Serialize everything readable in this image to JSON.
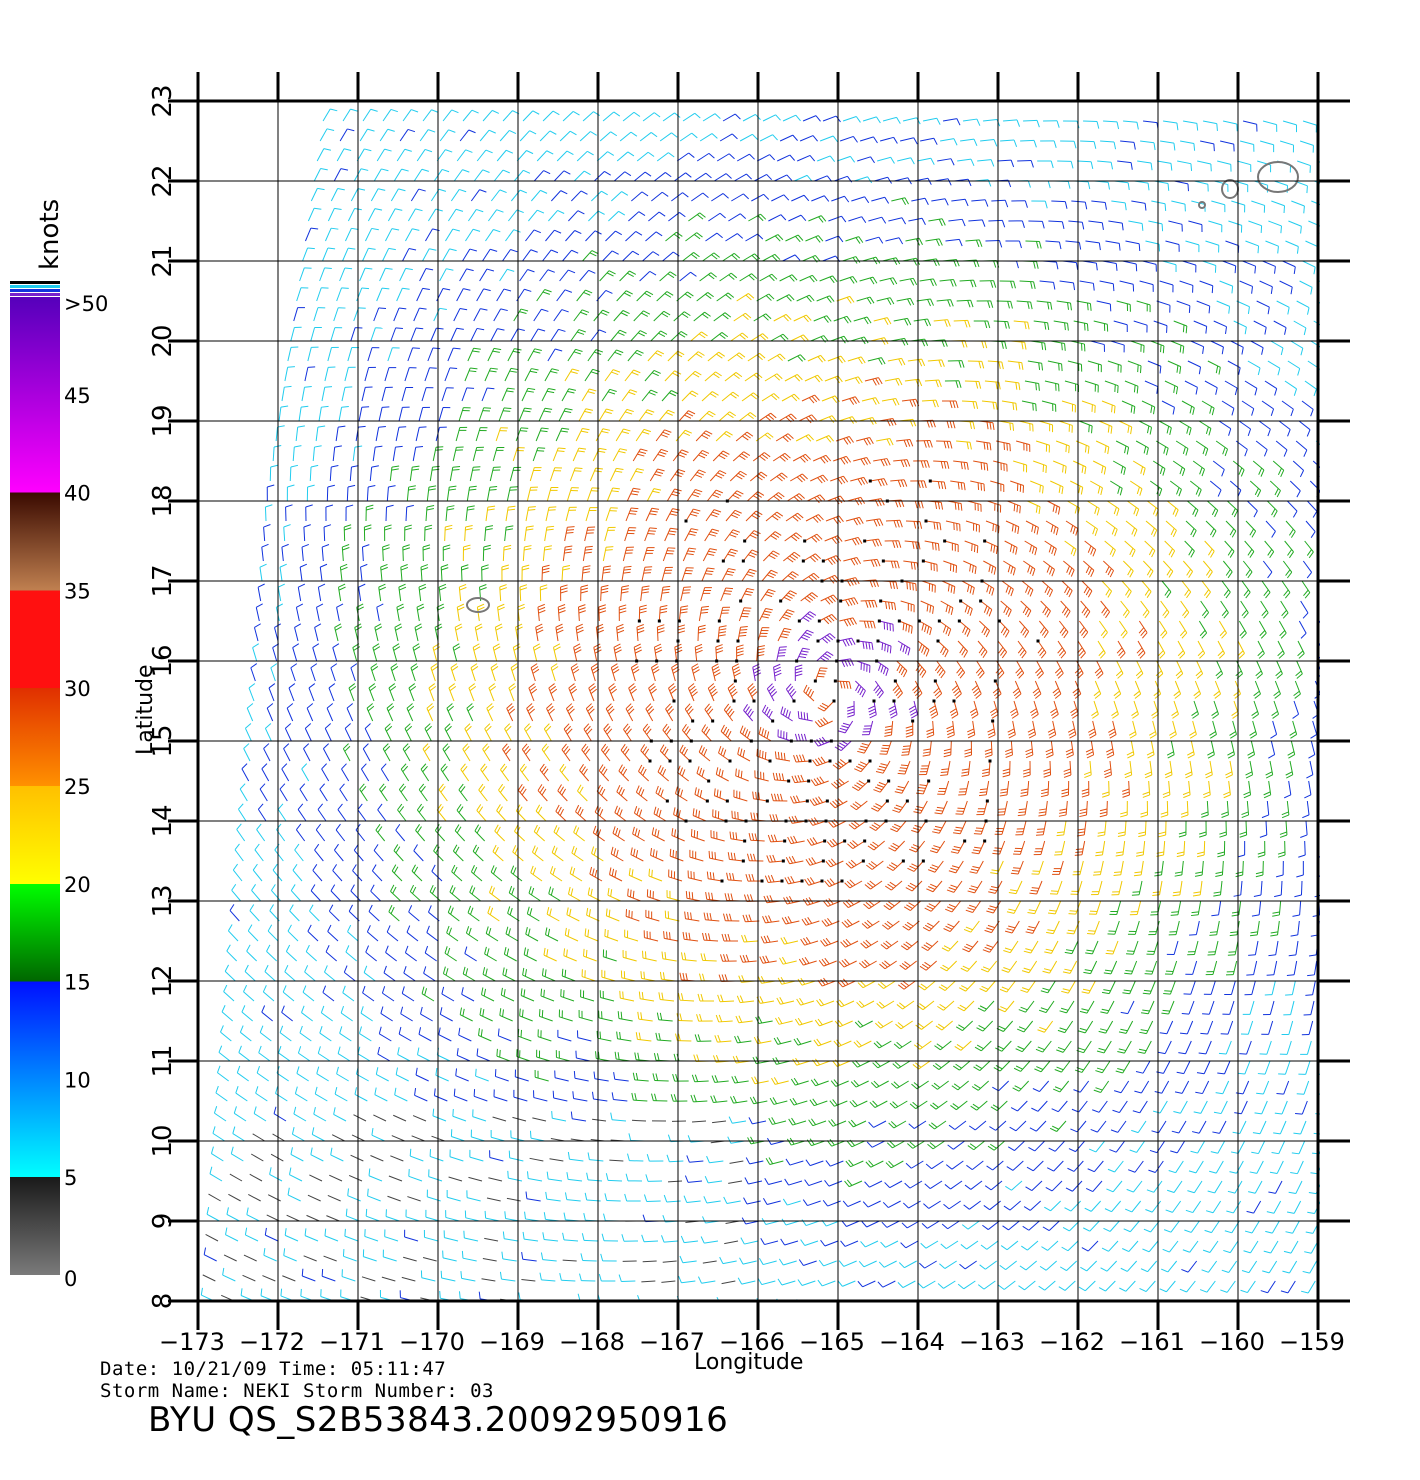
{
  "colors": {
    "speed_bins": [
      "#444444",
      "#22ccee",
      "#1133dd",
      "#22aa22",
      "#f0c800",
      "#e05010",
      "#7722cc"
    ],
    "land": "#777777",
    "grid": "#000000"
  },
  "legend": {
    "unit": "knots",
    "ticks": [
      "0",
      "5",
      "10",
      "15",
      "20",
      "25",
      "30",
      "35",
      "40",
      "45",
      ">50"
    ],
    "gradient_stops": [
      {
        "knots": 0,
        "color": "#7a7a7a"
      },
      {
        "knots": 5,
        "color": "#1a1a1a"
      },
      {
        "knots": 5,
        "color": "#00ffff"
      },
      {
        "knots": 15,
        "color": "#0010ff"
      },
      {
        "knots": 15,
        "color": "#006600"
      },
      {
        "knots": 20,
        "color": "#00ff00"
      },
      {
        "knots": 20,
        "color": "#ffff00"
      },
      {
        "knots": 25,
        "color": "#ffc000"
      },
      {
        "knots": 25,
        "color": "#ff9000"
      },
      {
        "knots": 30,
        "color": "#e03000"
      },
      {
        "knots": 30,
        "color": "#ff1010"
      },
      {
        "knots": 35,
        "color": "#ff1010"
      },
      {
        "knots": 35,
        "color": "#c08050"
      },
      {
        "knots": 40,
        "color": "#3a0a00"
      },
      {
        "knots": 40,
        "color": "#ff00ff"
      },
      {
        "knots": 50,
        "color": "#5500bb"
      }
    ]
  },
  "map": {
    "xlabel": "Longitude",
    "ylabel": "Latitude",
    "lon_range": [
      -173,
      -159
    ],
    "lat_range": [
      8,
      23
    ],
    "lon_ticks": [
      "-173",
      "-172",
      "-171",
      "-170",
      "-169",
      "-168",
      "-167",
      "-166",
      "-165",
      "-164",
      "-163",
      "-162",
      "-161",
      "-160",
      "-159"
    ],
    "lat_ticks": [
      "8",
      "9",
      "10",
      "11",
      "12",
      "13",
      "14",
      "15",
      "16",
      "17",
      "18",
      "19",
      "20",
      "21",
      "22",
      "23"
    ],
    "storm_center": {
      "lon": -165.1,
      "lat": 15.6
    },
    "islands": [
      {
        "name": "island-johnston",
        "lon": -169.5,
        "lat": 16.7
      },
      {
        "name": "island-kauai",
        "lon": -159.5,
        "lat": 22.05
      },
      {
        "name": "island-niihau",
        "lon": -160.1,
        "lat": 21.9
      }
    ]
  },
  "info": {
    "line1": "Date: 10/21/09   Time: 05:11:47",
    "line2": "Storm  Name: NEKI   Storm  Number: 03"
  },
  "product_id": "BYU  QS_S2B53843.20092950916"
}
